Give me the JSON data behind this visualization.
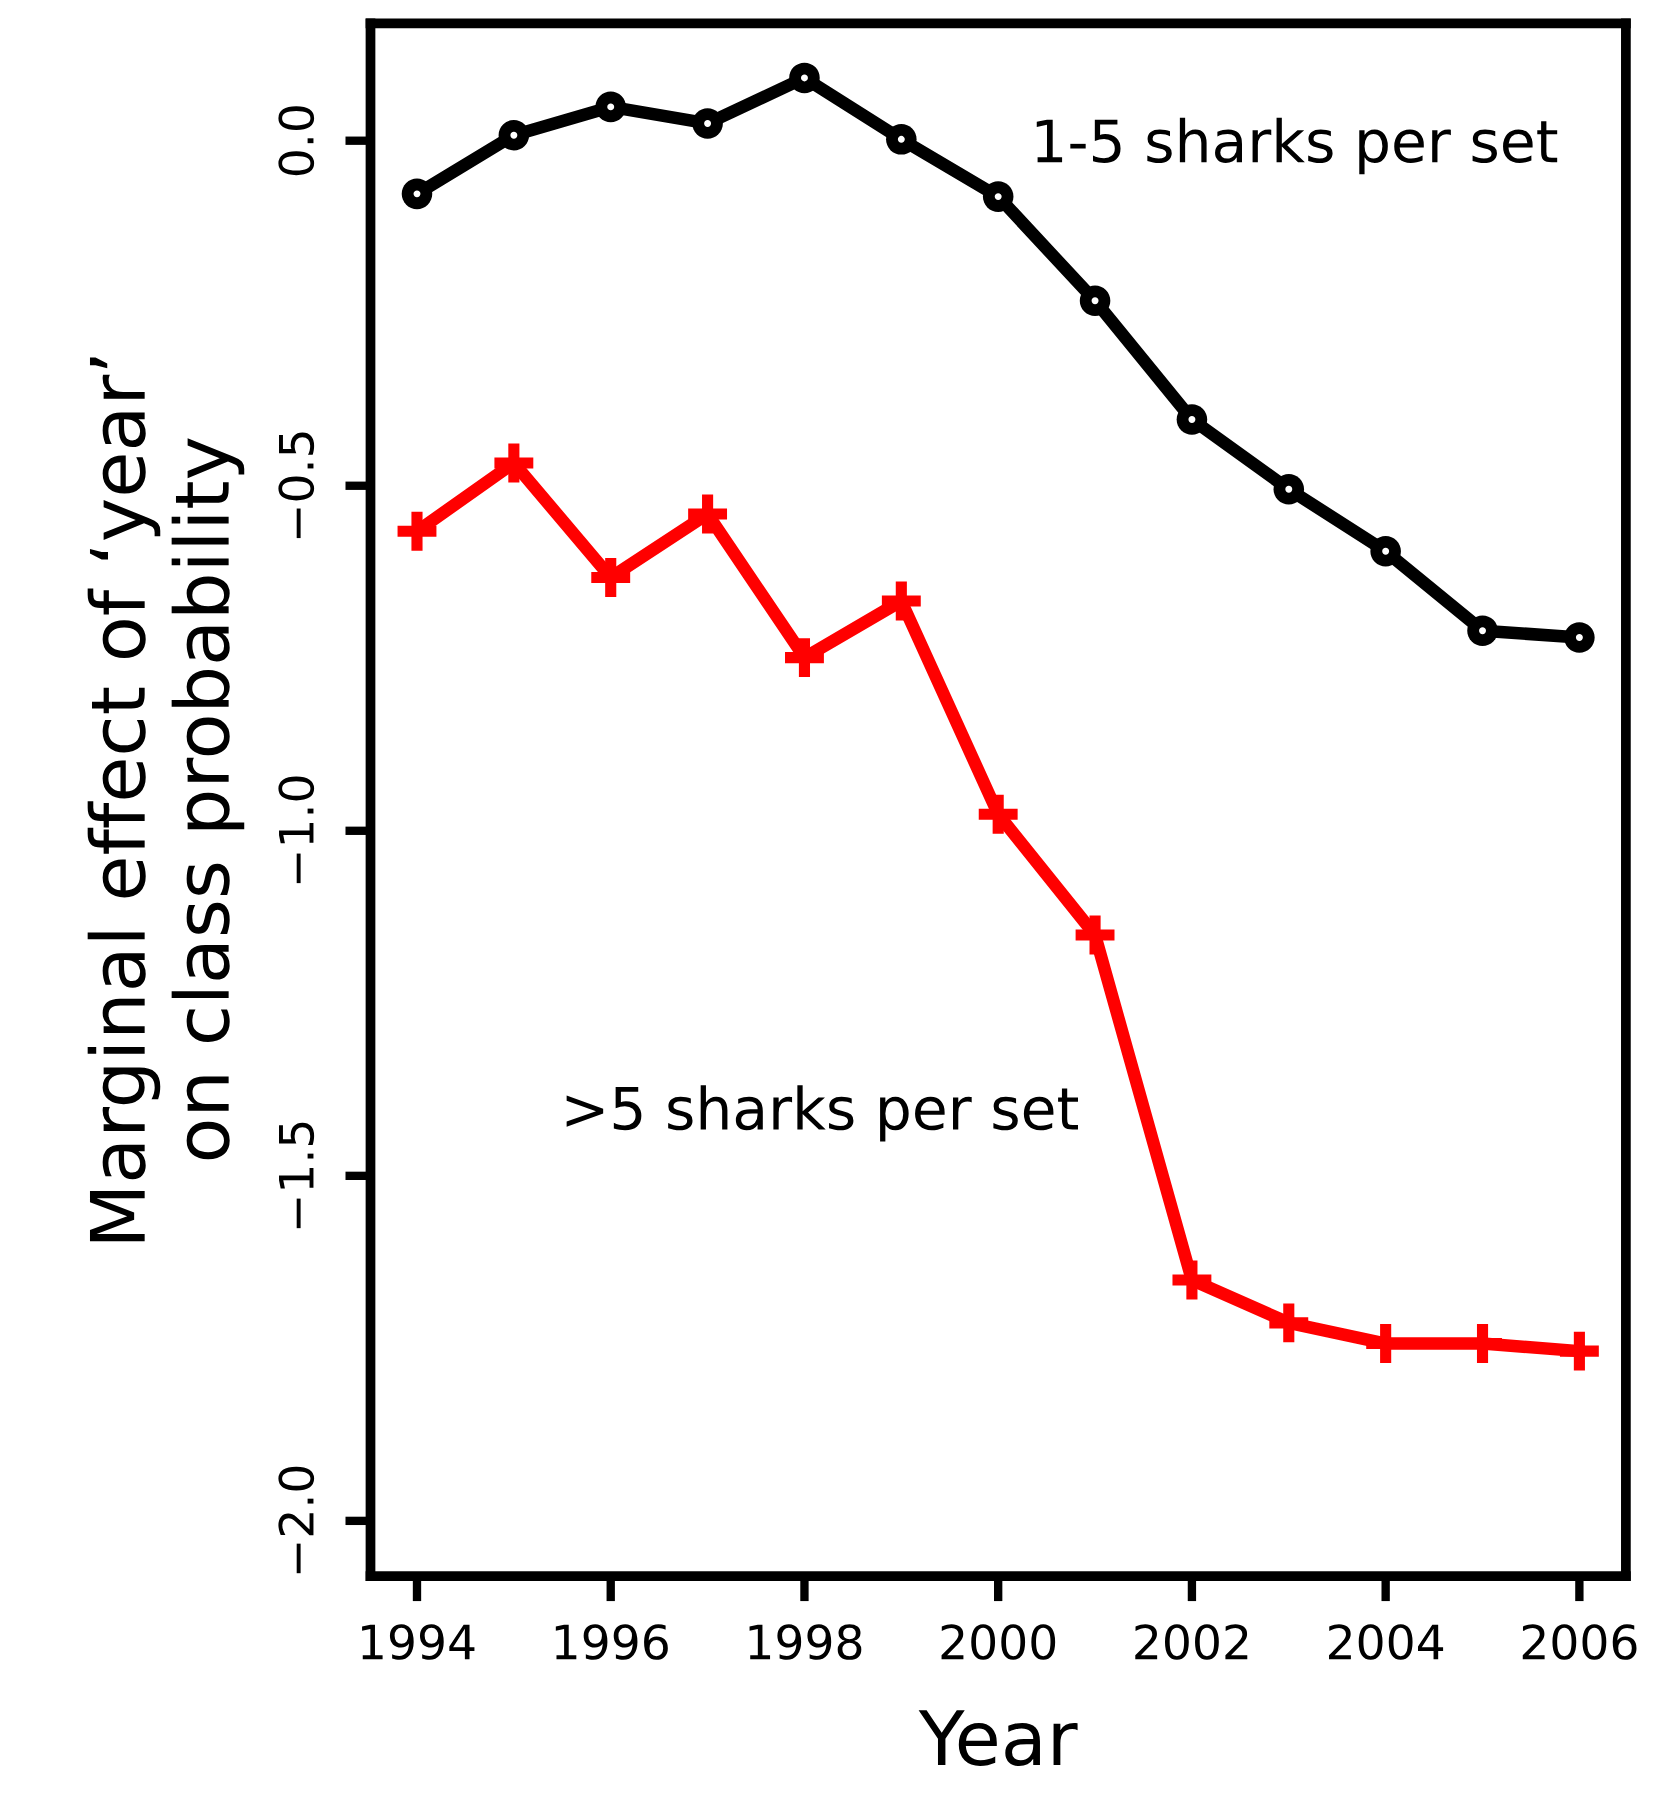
{
  "chart_data": {
    "type": "line",
    "xlabel": "Year",
    "ylabel": "Marginal effect of ‘year’\non class probability",
    "x": [
      1994,
      1995,
      1996,
      1997,
      1998,
      1999,
      2000,
      2001,
      2002,
      2003,
      2004,
      2005,
      2006
    ],
    "series": [
      {
        "color": "#000000",
        "marker": "circle",
        "values": [
          -0.077,
          0.008,
          0.049,
          0.025,
          0.091,
          0.002,
          -0.081,
          -0.232,
          -0.404,
          -0.505,
          -0.595,
          -0.71,
          -0.72
        ]
      },
      {
        "color": "#ff0000",
        "marker": "cross",
        "values": [
          -0.566,
          -0.467,
          -0.633,
          -0.541,
          -0.749,
          -0.667,
          -0.976,
          -1.151,
          -1.651,
          -1.713,
          -1.743,
          -1.743,
          -1.754
        ]
      }
    ],
    "annotations": [
      "1-5 sharks per set",
      ">5 sharks per set"
    ],
    "xlim": [
      1993.52,
      2006.48
    ],
    "ylim": [
      -2.08,
      0.17
    ],
    "xticks": [
      1994,
      1996,
      1998,
      2000,
      2002,
      2004,
      2006
    ],
    "yticks": [
      {
        "value": 0,
        "label": "0.0"
      },
      {
        "value": -0.5,
        "label": "−0.5"
      },
      {
        "value": -1,
        "label": "−1.0"
      },
      {
        "value": -1.5,
        "label": "−1.5"
      },
      {
        "value": -2,
        "label": "−2.0"
      }
    ],
    "grid": false,
    "legend": false,
    "line_style": "solid"
  }
}
